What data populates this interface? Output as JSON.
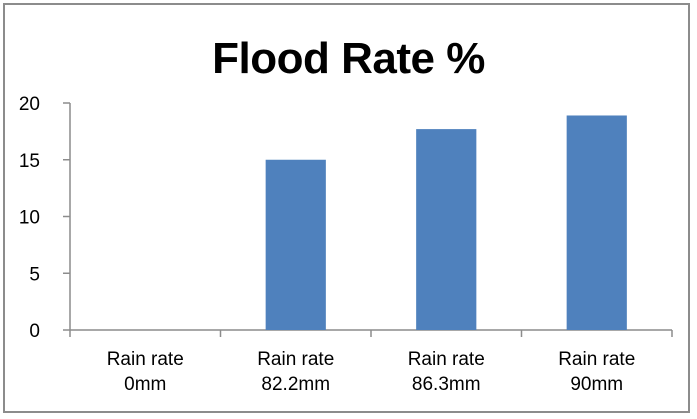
{
  "chart_data": {
    "type": "bar",
    "title": "Flood Rate %",
    "categories": [
      [
        "Rain rate",
        "0mm"
      ],
      [
        "Rain rate",
        "82.2mm"
      ],
      [
        "Rain rate",
        "86.3mm"
      ],
      [
        "Rain rate",
        "90mm"
      ]
    ],
    "values": [
      0,
      15,
      17.7,
      18.9
    ],
    "ylim": [
      0,
      20
    ],
    "yticks": [
      "0",
      "5",
      "10",
      "15",
      "20"
    ],
    "grid": false,
    "legend": "none",
    "bar_color": "#4f81bd"
  }
}
